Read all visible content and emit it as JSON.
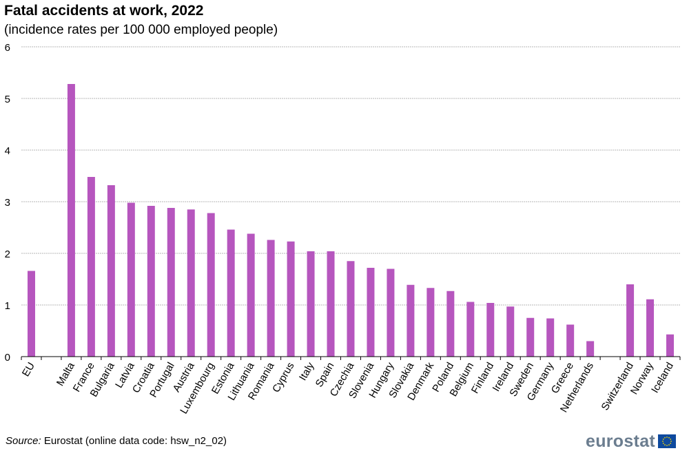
{
  "header": {
    "title": "Fatal accidents at work, 2022",
    "subtitle": "(incidence rates per 100 000 employed  people)"
  },
  "footer": {
    "source_label": "Source:",
    "source_text": " Eurostat (online data code: hsw_n2_02)",
    "logo_text": "eurostat"
  },
  "colors": {
    "bar": "#b656be",
    "grid": "#b4b4b4",
    "axis": "#000000",
    "logo_flag": "#0e4a9e",
    "logo_stars": "#f5d400"
  },
  "chart_data": {
    "type": "bar",
    "title": "Fatal accidents at work, 2022",
    "subtitle": "(incidence rates per 100 000 employed  people)",
    "categories": [
      "EU",
      "",
      "Malta",
      "France",
      "Bulgaria",
      "Latvia",
      "Croatia",
      "Portugal",
      "Austria",
      "Luxembourg",
      "Estonia",
      "Lithuania",
      "Romania",
      "Cyprus",
      "Italy",
      "Spain",
      "Czechia",
      "Slovenia",
      "Hungary",
      "Slovakia",
      "Denmark",
      "Poland",
      "Belgium",
      "Finland",
      "Ireland",
      "Sweden",
      "Germany",
      "Greece",
      "Netherlands",
      "",
      "Switzerland",
      "Norway",
      "Iceland"
    ],
    "values": [
      1.66,
      null,
      5.28,
      3.48,
      3.32,
      2.98,
      2.92,
      2.88,
      2.85,
      2.78,
      2.46,
      2.38,
      2.26,
      2.23,
      2.04,
      2.04,
      1.85,
      1.72,
      1.7,
      1.39,
      1.33,
      1.27,
      1.06,
      1.04,
      0.97,
      0.75,
      0.74,
      0.62,
      0.3,
      null,
      1.4,
      1.11,
      0.43
    ],
    "ylim": [
      0,
      6
    ],
    "yticks": [
      0,
      1,
      2,
      3,
      4,
      5,
      6
    ],
    "xlabel": "",
    "ylabel": "",
    "grid": true,
    "legend": "none"
  }
}
